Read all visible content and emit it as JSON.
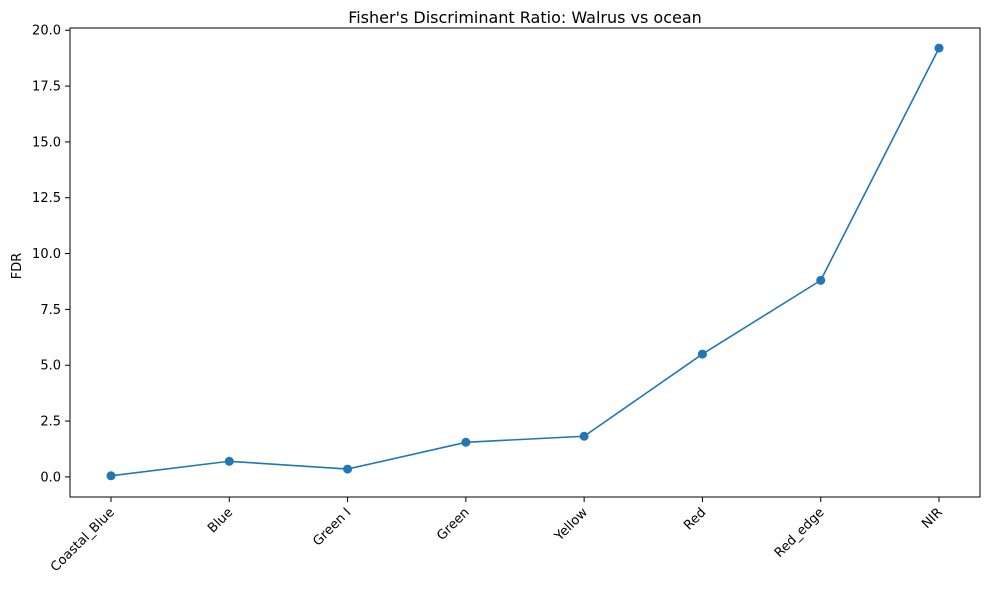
{
  "chart_data": {
    "type": "line",
    "title": "Fisher's Discriminant Ratio: Walrus vs ocean",
    "xlabel": "",
    "ylabel": "FDR",
    "categories": [
      "Coastal_Blue",
      "Blue",
      "Green I",
      "Green",
      "Yellow",
      "Red",
      "Red_edge",
      "NIR"
    ],
    "values": [
      0.05,
      0.7,
      0.35,
      1.55,
      1.82,
      5.5,
      8.8,
      19.2
    ],
    "ylim": [
      -0.9,
      20.1
    ],
    "yticks": [
      0.0,
      2.5,
      5.0,
      7.5,
      10.0,
      12.5,
      15.0,
      17.5,
      20.0
    ],
    "ytick_labels": [
      "0.0",
      "2.5",
      "5.0",
      "7.5",
      "10.0",
      "12.5",
      "15.0",
      "17.5",
      "20.0"
    ],
    "line_color": "#1f77b4",
    "marker": "circle",
    "grid": false,
    "legend": false
  }
}
